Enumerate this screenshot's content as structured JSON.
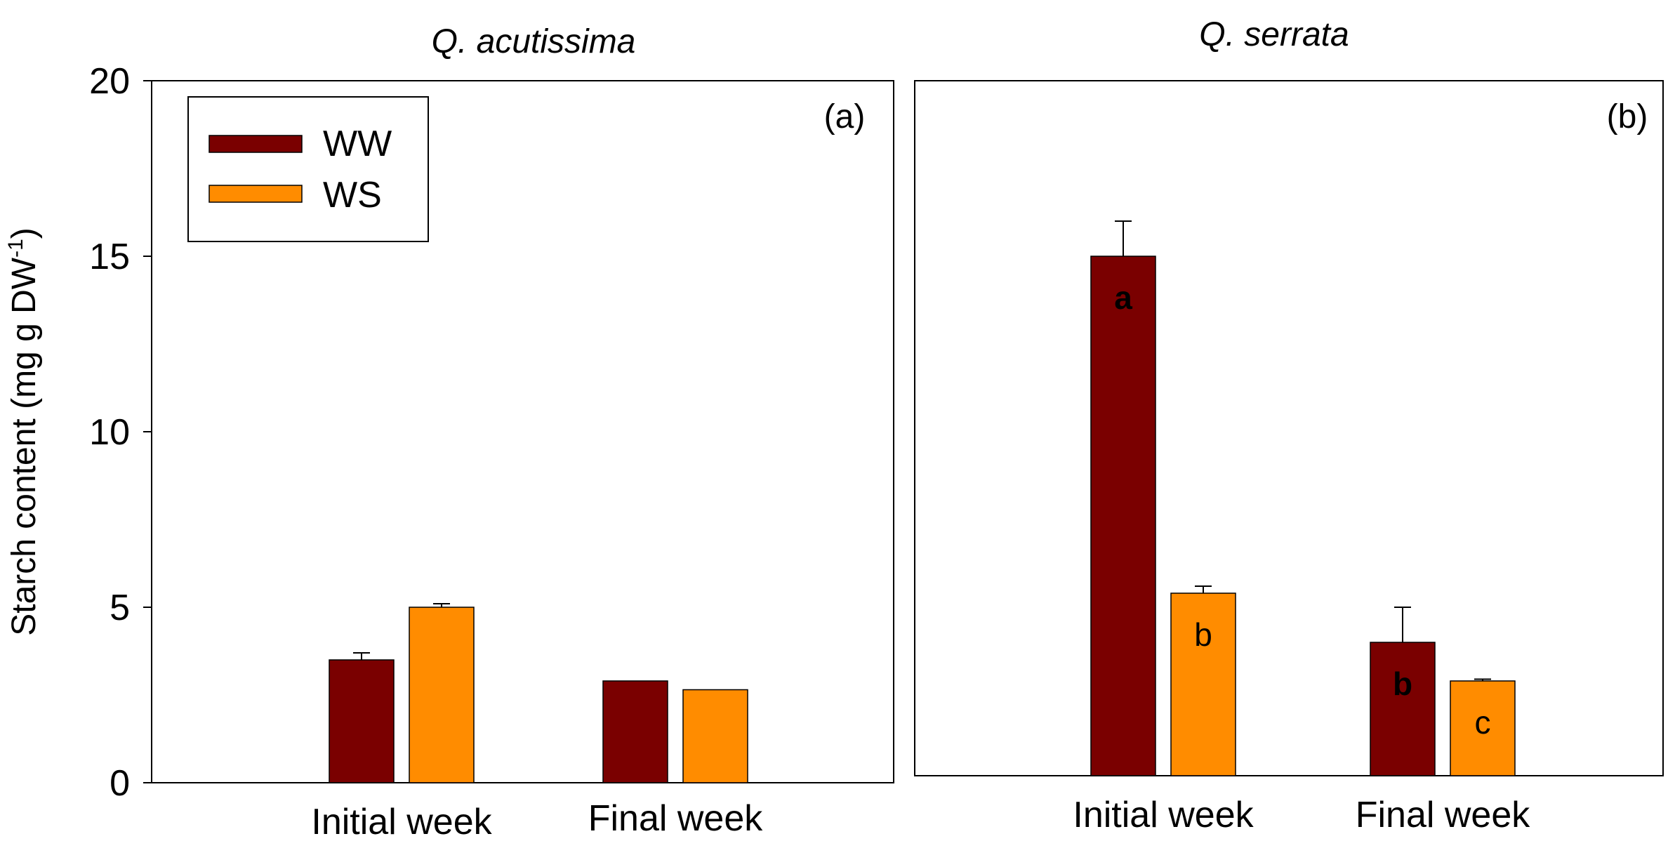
{
  "y_axis": {
    "label": "Starch content (mg g DW",
    "label_superscript": "-1",
    "label_close": ")",
    "ticks": [
      "0",
      "5",
      "10",
      "15",
      "20"
    ]
  },
  "legend": {
    "items": [
      {
        "name": "WW",
        "color": "#7a0000"
      },
      {
        "name": "WS",
        "color": "#ff8c00"
      }
    ]
  },
  "chart_data": [
    {
      "type": "bar",
      "panel_label": "(a)",
      "title": "Q. acutissima",
      "categories": [
        "Initial week",
        "Final week"
      ],
      "ylim": [
        0,
        20
      ],
      "series": [
        {
          "name": "WW",
          "color": "#7a0000",
          "values": [
            3.5,
            2.9
          ],
          "errors": [
            0.2,
            0.0
          ],
          "letters": [
            "",
            ""
          ]
        },
        {
          "name": "WS",
          "color": "#ff8c00",
          "values": [
            5.0,
            2.65
          ],
          "errors": [
            0.1,
            0.0
          ],
          "letters": [
            "",
            ""
          ]
        }
      ]
    },
    {
      "type": "bar",
      "panel_label": "(b)",
      "title": "Q. serrata",
      "categories": [
        "Initial week",
        "Final week"
      ],
      "ylim": [
        0,
        20
      ],
      "series": [
        {
          "name": "WW",
          "color": "#7a0000",
          "values": [
            14.8,
            3.8
          ],
          "errors": [
            1.0,
            1.0
          ],
          "letters": [
            "a",
            "b"
          ]
        },
        {
          "name": "WS",
          "color": "#ff8c00",
          "values": [
            5.2,
            2.7
          ],
          "errors": [
            0.2,
            0.05
          ],
          "letters": [
            "b",
            "c"
          ]
        }
      ]
    }
  ]
}
